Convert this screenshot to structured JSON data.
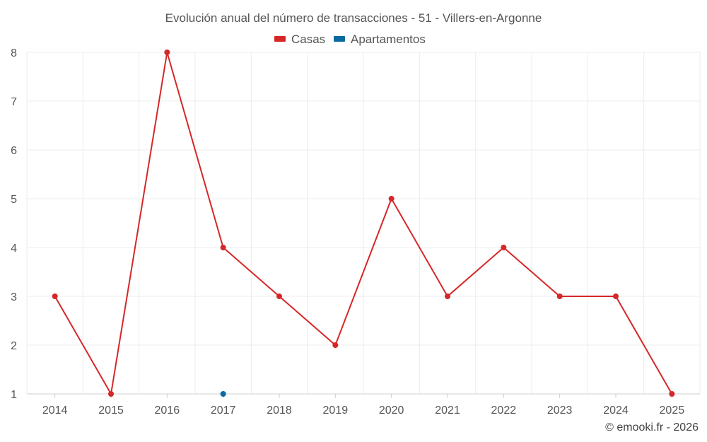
{
  "chart_data": {
    "type": "line",
    "title": "Evolución anual del número de transacciones - 51 - Villers-en-Argonne",
    "categories": [
      "2014",
      "2015",
      "2016",
      "2017",
      "2018",
      "2019",
      "2020",
      "2021",
      "2022",
      "2023",
      "2024",
      "2025"
    ],
    "series": [
      {
        "name": "Casas",
        "color": "#d62728",
        "values": [
          3,
          1,
          8,
          4,
          3,
          2,
          5,
          3,
          4,
          3,
          3,
          1
        ]
      },
      {
        "name": "Apartamentos",
        "color": "#0b6aa2",
        "values": [
          null,
          null,
          null,
          1,
          null,
          null,
          null,
          null,
          null,
          null,
          null,
          null
        ]
      }
    ],
    "ylim": [
      1,
      8
    ],
    "yticks": [
      "1",
      "2",
      "3",
      "4",
      "5",
      "6",
      "7",
      "8"
    ],
    "xlabel": "",
    "ylabel": "",
    "legend_position": "top-center",
    "grid": true
  },
  "credit": "© emooki.fr - 2026"
}
